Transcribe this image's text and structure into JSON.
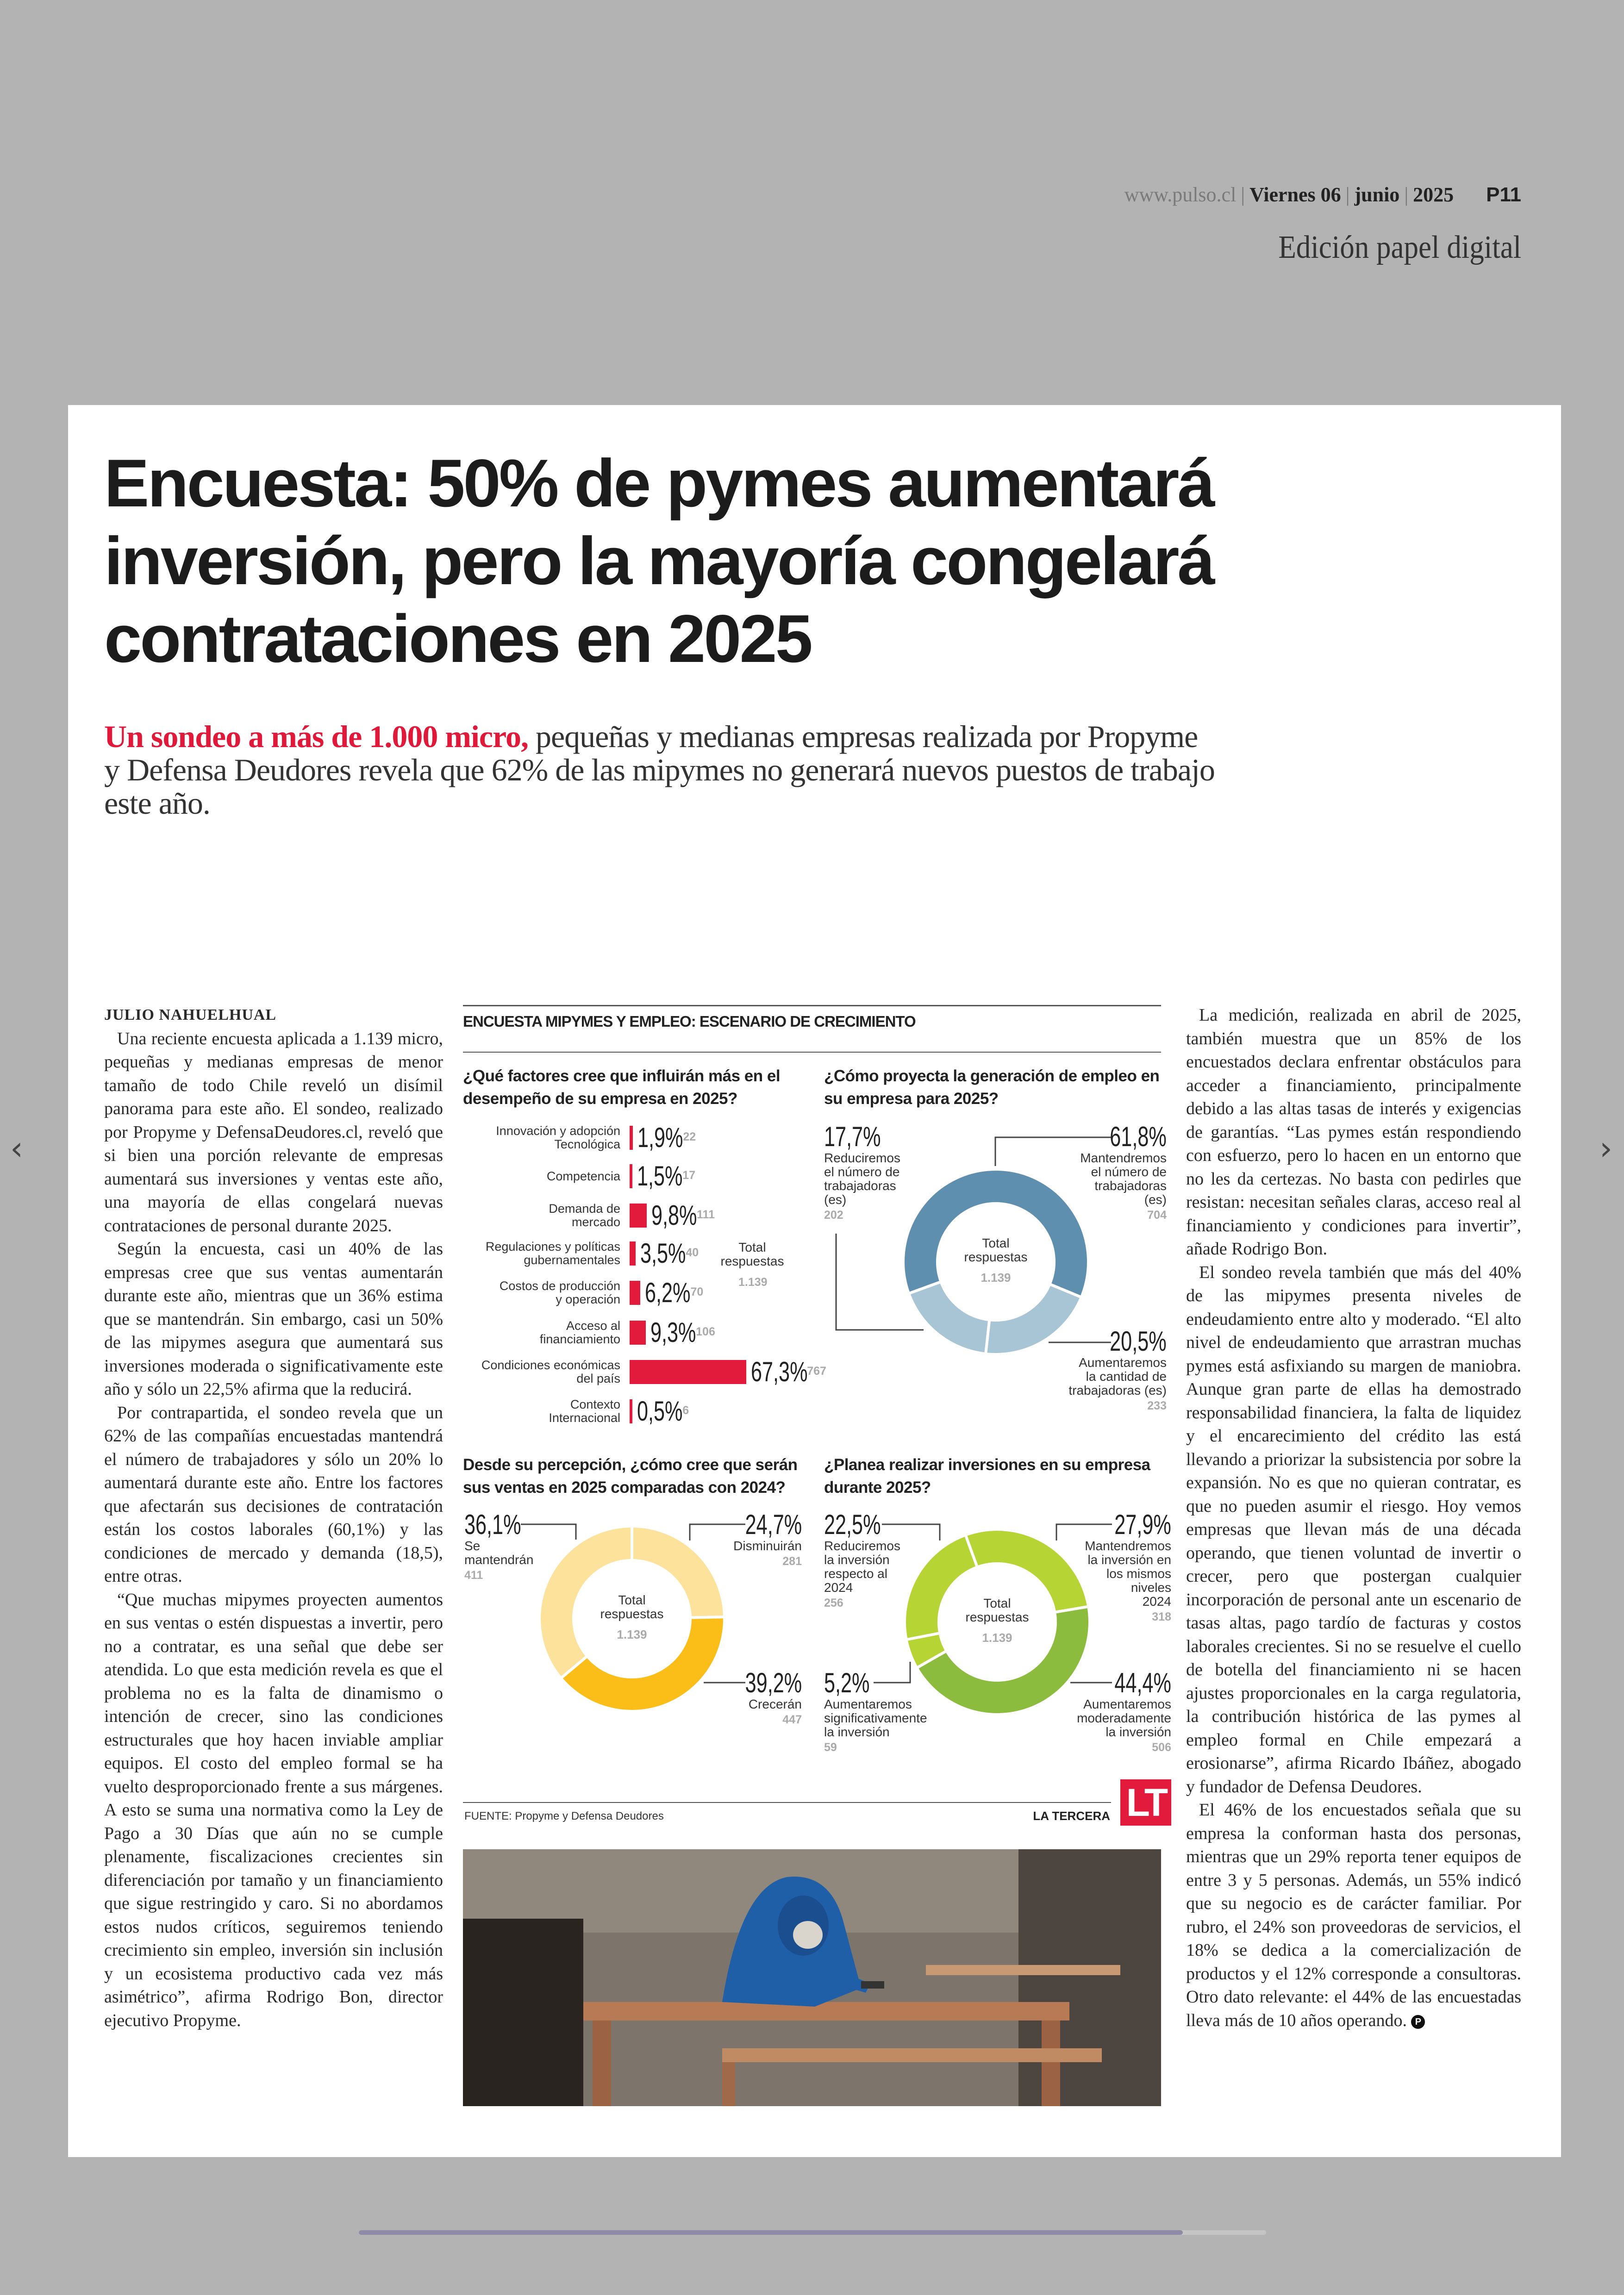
{
  "header": {
    "site": "www.pulso.cl",
    "day": "Viernes 06",
    "month": "junio",
    "year": "2025",
    "page": "P11",
    "edition": "Edición papel digital"
  },
  "nav": {
    "prev_icon": "chevron-left-icon",
    "next_icon": "chevron-right-icon",
    "prev": "‹",
    "next": "›"
  },
  "article": {
    "headline": "Encuesta: 50% de pymes aumentará inversión, pero la mayoría congelará contrataciones en 2025",
    "deck_lead": "Un sondeo a más de 1.000 micro,",
    "deck_rest": " pequeñas y medianas empresas realizada por Propyme y Defensa Deudores revela que 62% de las mipymes no generará nuevos puestos de trabajo este año.",
    "byline": "JULIO NAHUELHUAL",
    "left_paragraphs": [
      "Una reciente encuesta aplicada a 1.139 micro, pequeñas y medianas empresas de menor tamaño de todo Chile reveló un disímil panorama para este año. El sondeo, realizado por Propyme y DefensaDeudores.cl, reveló que si bien una porción relevante de empresas aumentará sus inversiones y ventas este año, una mayoría de ellas congelará nuevas contrataciones de personal durante 2025.",
      "Según la encuesta, casi un 40% de las empresas cree que sus ventas aumentarán durante este año, mientras que un 36% estima que se mantendrán. Sin embargo, casi un 50% de las mipymes asegura que aumentará sus inversiones moderada o significativamente este año y sólo un 22,5% afirma que la reducirá.",
      "Por contrapartida, el sondeo revela que un 62% de las compañías encuestadas mantendrá el número de trabajadores y sólo un 20% lo aumentará durante este año. Entre los factores que afectarán sus decisiones de contratación están los costos laborales (60,1%) y las condiciones de mercado y demanda (18,5), entre otras.",
      "“Que muchas mipymes proyecten aumentos en sus ventas o estén dispuestas a invertir, pero no a contratar, es una señal que debe ser atendida. Lo que esta medición revela es que el problema no es la falta de dinamismo o intención de crecer, sino las condiciones estructurales que hoy hacen inviable ampliar equipos. El costo del empleo formal se ha vuelto desproporcionado frente a sus márgenes. A esto se suma una normativa como la Ley de Pago a 30 Días que aún no se cumple plenamente, fiscalizaciones crecientes sin diferenciación por tamaño y un financiamiento que sigue restringido y caro. Si no abordamos estos nudos críticos, seguiremos teniendo crecimiento sin empleo, inversión sin inclusión y un ecosistema productivo cada vez más asimétrico”, afirma Rodrigo Bon, director ejecutivo Propyme."
    ],
    "right_paragraphs": [
      "La medición, realizada en abril de 2025, también muestra que un 85% de los encuestados declara enfrentar obstáculos para acceder a financiamiento, principalmente debido a las altas tasas de interés y exigencias de garantías. “Las pymes están respondiendo con esfuerzo, pero lo hacen en un entorno que no les da certezas. No basta con pedirles que resistan: necesitan señales claras, acceso real al financiamiento y condiciones para invertir”, añade Rodrigo Bon.",
      "El sondeo revela también que más del 40% de las mipymes presenta niveles de endeudamiento entre alto y moderado. “El alto nivel de endeudamiento que arrastran muchas pymes está asfixiando su margen de maniobra. Aunque gran parte de ellas ha demostrado responsabilidad financiera, la falta de liquidez y el encarecimiento del crédito las está llevando a priorizar la subsistencia por sobre la expansión. No es que no quieran contratar, es que no pueden asumir el riesgo. Hoy vemos empresas que llevan más de una década operando, que tienen voluntad de invertir o crecer, pero que postergan cualquier incorporación de personal ante un escenario de tasas altas, pago tardío de facturas y costos laborales crecientes. Si no se resuelve el cuello de botella del financiamiento ni se hacen ajustes proporcionales en la carga regulatoria, la contribución histórica de las pymes al empleo formal en Chile empezará a erosionarse”, afirma Ricardo Ibáñez, abogado y fundador de Defensa Deudores.",
      "El 46% de los encuestados señala que su empresa la conforman hasta dos personas, mientras que un 29% reporta tener equipos de entre 3 y 5 personas. Además, un 55% indicó que su negocio es de carácter familiar. Por rubro, el 24% son proveedoras de servicios, el 18% se dedica a la comercialización de productos y el 12% corresponde a consultoras. Otro dato relevante: el 44% de las encuestadas lleva más de 10 años operando."
    ],
    "end_mark": "P",
    "photo_icon": "photo-worker-icon"
  },
  "graphic": {
    "title": "ENCUESTA MIPYMES Y EMPLEO: ESCENARIO DE CRECIMIENTO",
    "source": "FUENTE: Propyme y Defensa Deudores",
    "brand": "LA TERCERA",
    "logo": "LT"
  },
  "chart_data": [
    {
      "type": "bar",
      "title": "¿Qué factores cree que influirán más en el desempeño de su empresa en 2025?",
      "categories": [
        "Innovación y adopción\nTecnológica",
        "Competencia",
        "Demanda de\nmercado",
        "Regulaciones y políticas\ngubernamentales",
        "Costos de producción\ny operación",
        "Acceso al\nfinanciamiento",
        "Condiciones económicas\ndel país",
        "Contexto\nInternacional"
      ],
      "values": [
        1.9,
        1.5,
        9.8,
        3.5,
        6.2,
        9.3,
        67.3,
        0.5
      ],
      "value_labels": [
        "1,9%",
        "1,5%",
        "9,8%",
        "3,5%",
        "6,2%",
        "9,3%",
        "67,3%",
        "0,5%"
      ],
      "counts": [
        "22",
        "17",
        "111",
        "40",
        "70",
        "106",
        "767",
        "6"
      ],
      "total_label": "Total\nrespuestas",
      "total": "1.139",
      "color": "#e21b3c"
    },
    {
      "type": "pie",
      "title": "¿Cómo proyecta la generación de empleo en su empresa para 2025?",
      "segments": [
        {
          "label": "Mantendremos\nel número de\ntrabajadoras\n(es)",
          "value": 61.8,
          "value_label": "61,8%",
          "count": "704",
          "color": "#5f8fae"
        },
        {
          "label": "Aumentaremos\nla cantidad de\ntrabajadoras (es)",
          "value": 20.5,
          "value_label": "20,5%",
          "count": "233",
          "color": "#a8c5d6"
        },
        {
          "label": "Reduciremos\nel número de\ntrabajadoras\n(es)",
          "value": 17.7,
          "value_label": "17,7%",
          "count": "202",
          "color": "#a8c5d6"
        }
      ],
      "total_label": "Total\nrespuestas",
      "total": "1.139"
    },
    {
      "type": "pie",
      "title": "Desde su percepción, ¿cómo cree que serán sus ventas en 2025 comparadas con 2024?",
      "segments": [
        {
          "label": "Disminuirán",
          "value": 24.7,
          "value_label": "24,7%",
          "count": "281",
          "color": "#fde29c"
        },
        {
          "label": "Crecerán",
          "value": 39.2,
          "value_label": "39,2%",
          "count": "447",
          "color": "#fbbd18"
        },
        {
          "label": "Se\nmantendrán",
          "value": 36.1,
          "value_label": "36,1%",
          "count": "411",
          "color": "#fde29c"
        }
      ],
      "total_label": "Total\nrespuestas",
      "total": "1.139"
    },
    {
      "type": "pie",
      "title": "¿Planea realizar inversiones en su empresa durante 2025?",
      "segments": [
        {
          "label": "Mantendremos\nla inversión en\nlos mismos\nniveles\n2024",
          "value": 27.9,
          "value_label": "27,9%",
          "count": "318",
          "color": "#b6d434"
        },
        {
          "label": "Aumentaremos\nmoderadamente\nla inversión",
          "value": 44.4,
          "value_label": "44,4%",
          "count": "506",
          "color": "#8cbc3d"
        },
        {
          "label": "Aumentaremos\nsignificativamente\nla inversión",
          "value": 5.2,
          "value_label": "5,2%",
          "count": "59",
          "color": "#b6d434"
        },
        {
          "label": "Reduciremos\nla inversión\nrespecto al\n2024",
          "value": 22.5,
          "value_label": "22,5%",
          "count": "256",
          "color": "#b6d434"
        }
      ],
      "total_label": "Total\nrespuestas",
      "total": "1.139"
    }
  ]
}
